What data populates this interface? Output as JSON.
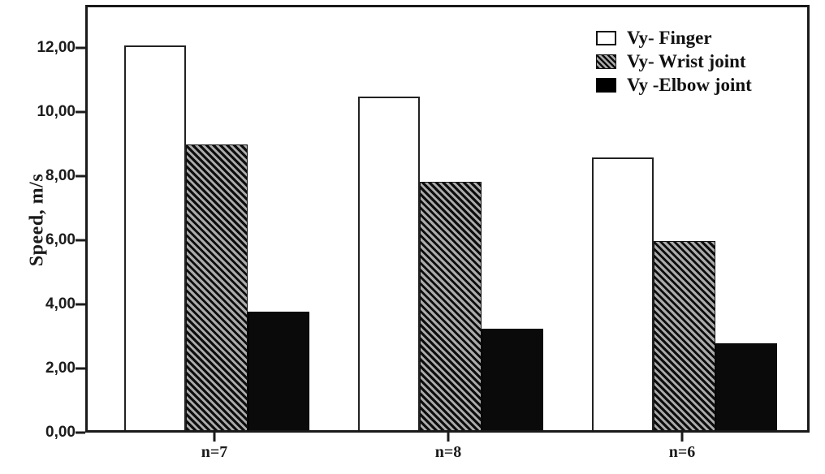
{
  "chart_data": {
    "type": "bar",
    "title": "",
    "xlabel": "",
    "ylabel": "Speed, m/s",
    "categories": [
      "n=7",
      "n=8",
      "n=6"
    ],
    "series": [
      {
        "name": "Vy- Finger",
        "swatch": "white",
        "values": [
          12.0,
          10.4,
          8.5
        ]
      },
      {
        "name": "Vy- Wrist joint",
        "swatch": "hatched",
        "values": [
          8.9,
          7.75,
          5.9
        ]
      },
      {
        "name": "Vy -Elbow joint",
        "swatch": "black",
        "values": [
          3.7,
          3.15,
          2.7
        ]
      }
    ],
    "y_tick_labels": [
      "0,00",
      "2,00",
      "4,00",
      "6,00",
      "8,00",
      "10,00",
      "12,00"
    ],
    "y_tick_values": [
      0,
      2,
      4,
      6,
      8,
      10,
      12
    ],
    "ylim": [
      0,
      13.33
    ],
    "decimal_separator": ",",
    "grid": false,
    "legend_position": "top-right-inside",
    "colors": {
      "background": "#ffffff",
      "frame": "#1a1a1a",
      "bar_white": "#ffffff",
      "bar_black": "#0a0a0a",
      "hatch_dark": "#0d0d0d",
      "hatch_light": "#ababab"
    }
  }
}
